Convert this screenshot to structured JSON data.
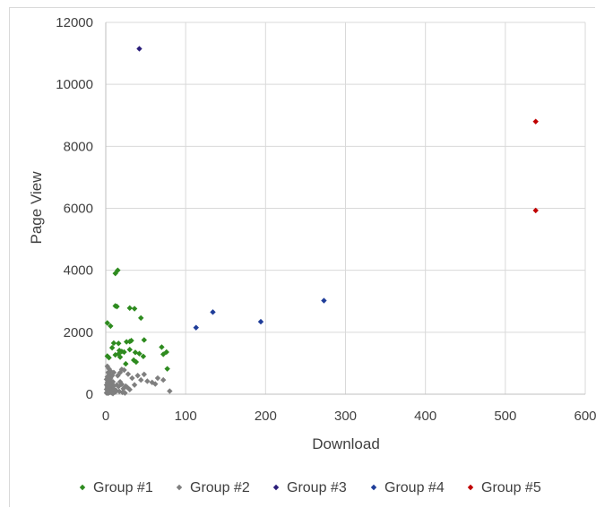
{
  "chart_data": {
    "type": "scatter",
    "title": "",
    "xlabel": "Download",
    "ylabel": "Page View",
    "xlim": [
      0,
      600
    ],
    "ylim": [
      0,
      12000
    ],
    "xticks": [
      "0",
      "100",
      "200",
      "300",
      "400",
      "500",
      "600"
    ],
    "yticks": [
      "0",
      "2000",
      "4000",
      "6000",
      "8000",
      "10000",
      "12000"
    ],
    "grid": true,
    "legend": "bottom",
    "series": [
      {
        "name": "Group #1",
        "color": "#2e8b1f",
        "points": [
          [
            15,
            4000
          ],
          [
            12,
            3900
          ],
          [
            12,
            2850
          ],
          [
            14,
            2830
          ],
          [
            30,
            2780
          ],
          [
            36,
            2760
          ],
          [
            44,
            2460
          ],
          [
            2,
            2300
          ],
          [
            6,
            2200
          ],
          [
            10,
            1650
          ],
          [
            16,
            1640
          ],
          [
            32,
            1730
          ],
          [
            30,
            1700
          ],
          [
            26,
            1690
          ],
          [
            48,
            1750
          ],
          [
            70,
            1520
          ],
          [
            76,
            1360
          ],
          [
            72,
            1290
          ],
          [
            17,
            1410
          ],
          [
            20,
            1380
          ],
          [
            23,
            1360
          ],
          [
            12,
            1270
          ],
          [
            18,
            1200
          ],
          [
            16,
            1300
          ],
          [
            37,
            1350
          ],
          [
            42,
            1310
          ],
          [
            47,
            1220
          ],
          [
            2,
            1230
          ],
          [
            4,
            1180
          ],
          [
            35,
            1100
          ],
          [
            38,
            1040
          ],
          [
            25,
            980
          ],
          [
            77,
            820
          ],
          [
            30,
            1440
          ],
          [
            8,
            1500
          ]
        ]
      },
      {
        "name": "Group #2",
        "color": "#7f7f7f",
        "points": [
          [
            2,
            900
          ],
          [
            4,
            820
          ],
          [
            6,
            750
          ],
          [
            3,
            700
          ],
          [
            5,
            640
          ],
          [
            8,
            600
          ],
          [
            2,
            560
          ],
          [
            6,
            520
          ],
          [
            1,
            480
          ],
          [
            4,
            450
          ],
          [
            7,
            420
          ],
          [
            9,
            400
          ],
          [
            2,
            380
          ],
          [
            5,
            360
          ],
          [
            3,
            330
          ],
          [
            8,
            320
          ],
          [
            1,
            300
          ],
          [
            6,
            280
          ],
          [
            10,
            270
          ],
          [
            4,
            250
          ],
          [
            2,
            230
          ],
          [
            7,
            210
          ],
          [
            3,
            200
          ],
          [
            9,
            190
          ],
          [
            5,
            170
          ],
          [
            1,
            160
          ],
          [
            11,
            150
          ],
          [
            6,
            140
          ],
          [
            3,
            120
          ],
          [
            8,
            110
          ],
          [
            4,
            90
          ],
          [
            2,
            80
          ],
          [
            12,
            70
          ],
          [
            5,
            60
          ],
          [
            7,
            50
          ],
          [
            1,
            40
          ],
          [
            3,
            30
          ],
          [
            9,
            20
          ],
          [
            14,
            300
          ],
          [
            16,
            250
          ],
          [
            18,
            400
          ],
          [
            20,
            320
          ],
          [
            22,
            180
          ],
          [
            25,
            260
          ],
          [
            27,
            220
          ],
          [
            30,
            150
          ],
          [
            15,
            600
          ],
          [
            18,
            700
          ],
          [
            20,
            800
          ],
          [
            23,
            780
          ],
          [
            28,
            650
          ],
          [
            33,
            520
          ],
          [
            36,
            300
          ],
          [
            40,
            600
          ],
          [
            44,
            460
          ],
          [
            48,
            640
          ],
          [
            52,
            420
          ],
          [
            58,
            380
          ],
          [
            62,
            330
          ],
          [
            65,
            520
          ],
          [
            72,
            460
          ],
          [
            80,
            100
          ],
          [
            13,
            120
          ],
          [
            17,
            90
          ],
          [
            21,
            60
          ],
          [
            24,
            40
          ],
          [
            10,
            700
          ]
        ]
      },
      {
        "name": "Group #3",
        "color": "#2b1e7a",
        "points": [
          [
            42,
            11150
          ]
        ]
      },
      {
        "name": "Group #4",
        "color": "#1f3d99",
        "points": [
          [
            113,
            2150
          ],
          [
            134,
            2650
          ],
          [
            194,
            2340
          ],
          [
            273,
            3020
          ]
        ]
      },
      {
        "name": "Group #5",
        "color": "#c00000",
        "points": [
          [
            538,
            8800
          ],
          [
            538,
            5930
          ]
        ]
      }
    ]
  }
}
